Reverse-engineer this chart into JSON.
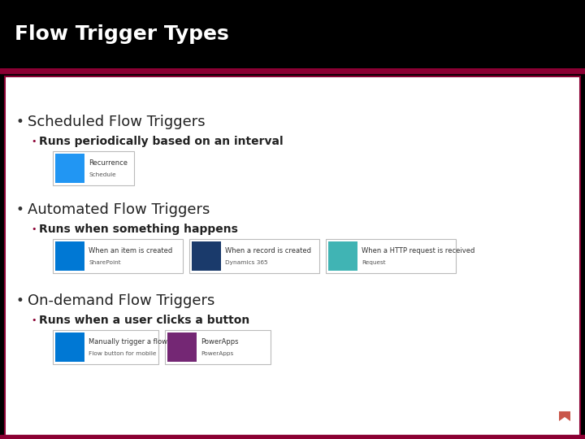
{
  "title": "Flow Trigger Types",
  "title_bg": "#000000",
  "title_color": "#ffffff",
  "title_fontsize": 18,
  "border_color": "#8b0033",
  "content_bg": "#ffffff",
  "bullet1_main": "Scheduled Flow Triggers",
  "bullet1_sub": "Runs periodically based on an interval",
  "bullet1_cards": [
    {
      "icon_color": "#2196f3",
      "line1": "Recurrence",
      "line2": "Schedule"
    }
  ],
  "bullet2_main": "Automated Flow Triggers",
  "bullet2_sub": "Runs when something happens",
  "bullet2_cards": [
    {
      "icon_color": "#0078d4",
      "line1": "When an item is created",
      "line2": "SharePoint"
    },
    {
      "icon_color": "#1a3a6b",
      "line1": "When a record is created",
      "line2": "Dynamics 365"
    },
    {
      "icon_color": "#40b4b4",
      "line1": "When a HTTP request is received",
      "line2": "Request"
    }
  ],
  "bullet3_main": "On-demand Flow Triggers",
  "bullet3_sub": "Runs when a user clicks a button",
  "bullet3_cards": [
    {
      "icon_color": "#0078d4",
      "line1": "Manually trigger a flow",
      "line2": "Flow button for mobile"
    },
    {
      "icon_color": "#742774",
      "line1": "PowerApps",
      "line2": "PowerApps"
    }
  ],
  "main_bullet_fontsize": 13,
  "sub_bullet_fontsize": 10,
  "card_fontsize": 6,
  "bullet_color": "#222222",
  "sub_bullet_color": "#222222",
  "small_bullet_color": "#8b0033",
  "footer_logo_color": "#c0392b"
}
